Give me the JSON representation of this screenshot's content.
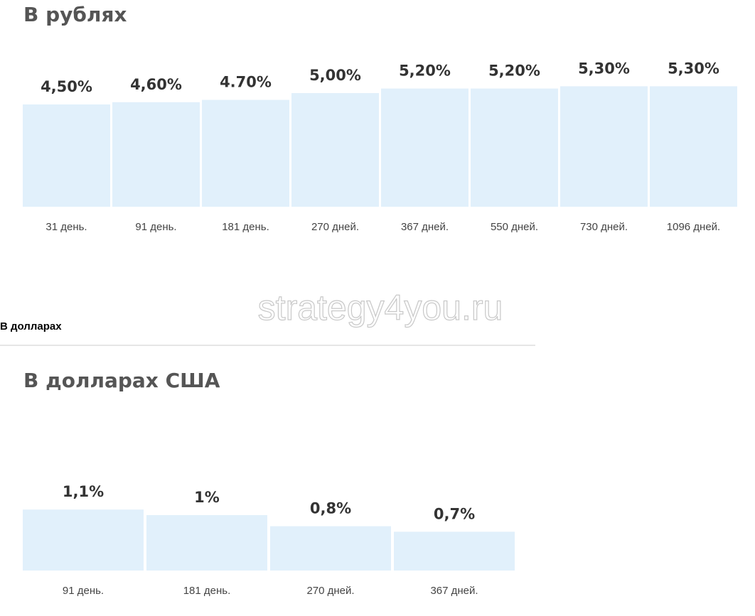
{
  "chart_data": [
    {
      "type": "bar",
      "title": "В рублях",
      "categories": [
        "31 день.",
        "91 день.",
        "181 день.",
        "270 дней.",
        "367 дней.",
        "550 дней.",
        "730 дней.",
        "1096 дней."
      ],
      "values": [
        4.5,
        4.6,
        4.7,
        5.0,
        5.2,
        5.2,
        5.3,
        5.3
      ],
      "value_labels": [
        "4,50%",
        "4,60%",
        "4.70%",
        "5,00%",
        "5,20%",
        "5,20%",
        "5,30%",
        "5,30%"
      ],
      "color": "#e1f0fb"
    },
    {
      "type": "bar",
      "title": "В долларах США",
      "categories": [
        "91 день.",
        "181 день.",
        "270 дней.",
        "367 дней."
      ],
      "values": [
        1.1,
        1,
        0.8,
        0.7
      ],
      "value_labels": [
        "1,1%",
        "1%",
        "0,8%",
        "0,7%"
      ],
      "color": "#e1f0fb"
    }
  ],
  "section_label": "В долларах",
  "watermark": "strategy4you.ru"
}
